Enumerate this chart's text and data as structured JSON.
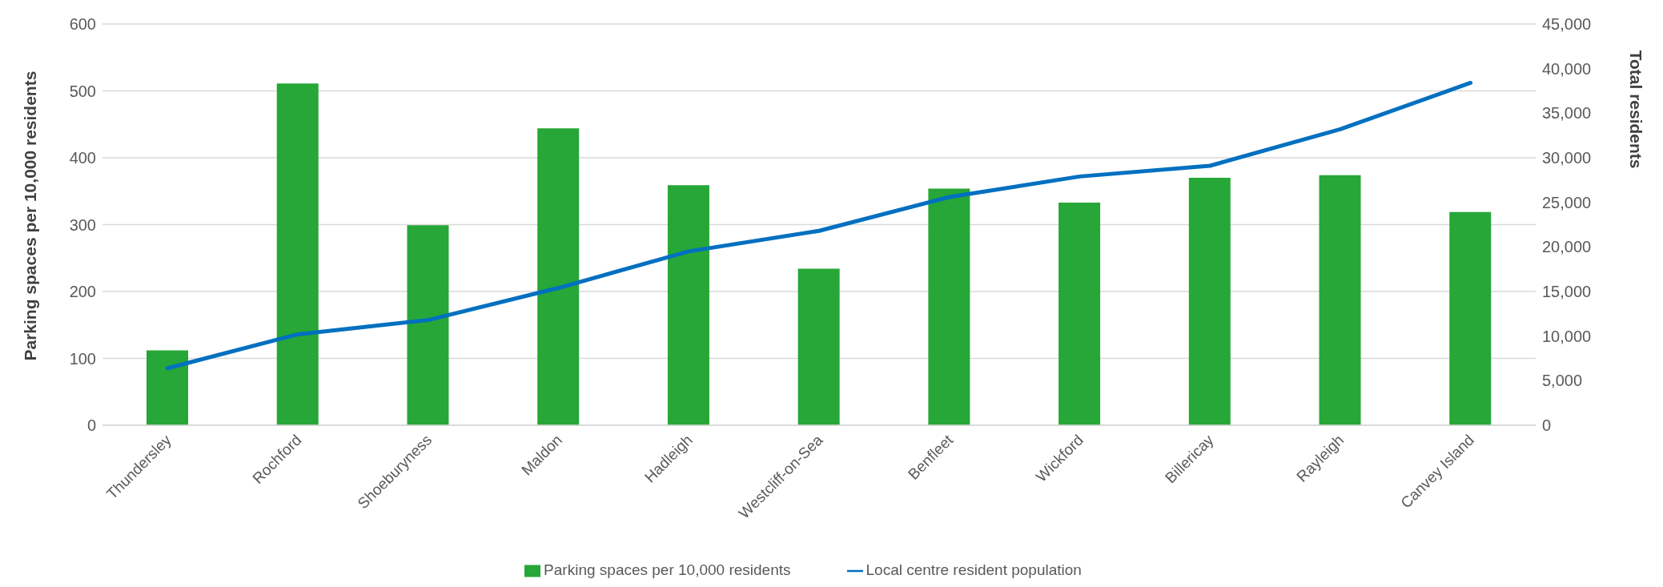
{
  "chart_data": {
    "type": "bar",
    "categories": [
      "Thundersley",
      "Rochford",
      "Shoeburyness",
      "Maldon",
      "Hadleigh",
      "Westcliff-on-Sea",
      "Benfleet",
      "Wickford",
      "Billericay",
      "Rayleigh",
      "Canvey Island"
    ],
    "series": [
      {
        "name": "Parking spaces per 10,000 residents",
        "color": "#26a737",
        "values": [
          112,
          511,
          299,
          444,
          359,
          234,
          354,
          333,
          370,
          374,
          319
        ]
      },
      {
        "name": "Local centre resident population",
        "type": "line",
        "axis": "y2",
        "color": "#0070c0",
        "values": [
          6400,
          10200,
          11800,
          15400,
          19500,
          21800,
          25600,
          27900,
          29100,
          33200,
          38400
        ]
      }
    ],
    "ylabel": "Parking spaces per 10,000 residents",
    "y2label": "Total residents",
    "ylim": [
      0,
      600
    ],
    "yticks": [
      0,
      100,
      200,
      300,
      400,
      500,
      600
    ],
    "y2lim": [
      0,
      45000
    ],
    "y2ticks": [
      {
        "value": 0,
        "label": "0"
      },
      {
        "value": 5000,
        "label": "5,000"
      },
      {
        "value": 10000,
        "label": "10,000"
      },
      {
        "value": 15000,
        "label": "15,000"
      },
      {
        "value": 20000,
        "label": "20,000"
      },
      {
        "value": 25000,
        "label": "25,000"
      },
      {
        "value": 30000,
        "label": "30,000"
      },
      {
        "value": 35000,
        "label": "35,000"
      },
      {
        "value": 40000,
        "label": "40,000"
      },
      {
        "value": 45000,
        "label": "45,000"
      }
    ],
    "grid": "y",
    "legend": "bottom",
    "marker": "none",
    "line_style": "solid"
  }
}
